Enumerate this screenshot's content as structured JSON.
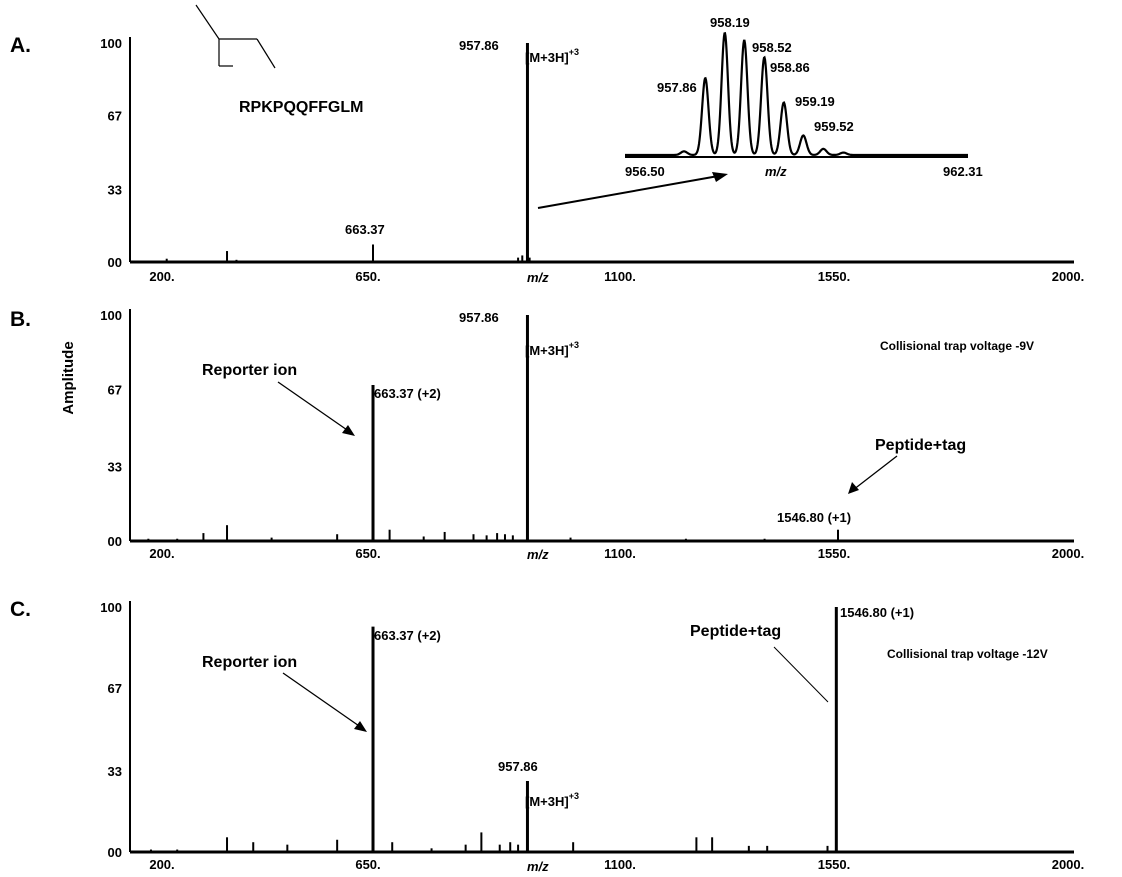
{
  "figure": {
    "y_axis_label": "Amplitude",
    "x_axis_label": "m/z"
  },
  "chart_data": [
    {
      "type": "bar",
      "panel": "A.",
      "xlim": [
        200,
        2000
      ],
      "ylim": [
        0,
        100
      ],
      "x_ticks": [
        "200.",
        "650.",
        "1100.",
        "1550.",
        "2000."
      ],
      "y_ticks": [
        "00",
        "33",
        "67",
        "100"
      ],
      "xlabel": "m/z",
      "peaks": [
        {
          "mz": 270,
          "rel": 1.5
        },
        {
          "mz": 385,
          "rel": 5
        },
        {
          "mz": 403,
          "rel": 1
        },
        {
          "mz": 663.37,
          "rel": 8
        },
        {
          "mz": 940,
          "rel": 2
        },
        {
          "mz": 948,
          "rel": 3
        },
        {
          "mz": 957.86,
          "rel": 100
        },
        {
          "mz": 962,
          "rel": 2
        }
      ],
      "annotations": [
        {
          "text": "663.37",
          "mz": 663.37
        },
        {
          "text": "957.86",
          "mz": 957.86
        },
        {
          "text": "[M+3H]",
          "sup": "+3"
        }
      ],
      "structure_label": "RPKPQQFFGLM",
      "inset": {
        "xlim": [
          956.5,
          962.31
        ],
        "x_ticks": [
          "956.50",
          "962.31"
        ],
        "xlabel": "m/z",
        "peaks": [
          {
            "mz": 957.86,
            "rel": 63,
            "label": "957.86"
          },
          {
            "mz": 958.19,
            "rel": 100,
            "label": "958.19"
          },
          {
            "mz": 958.52,
            "rel": 94,
            "label": "958.52"
          },
          {
            "mz": 958.86,
            "rel": 80,
            "label": "958.86"
          },
          {
            "mz": 959.19,
            "rel": 43,
            "label": "959.19"
          },
          {
            "mz": 959.52,
            "rel": 16,
            "label": "959.52"
          },
          {
            "mz": 957.5,
            "rel": 3
          },
          {
            "mz": 959.86,
            "rel": 5
          },
          {
            "mz": 960.2,
            "rel": 2
          }
        ]
      }
    },
    {
      "type": "bar",
      "panel": "B.",
      "xlim": [
        200,
        2000
      ],
      "ylim": [
        0,
        100
      ],
      "x_ticks": [
        "200.",
        "650.",
        "1100.",
        "1550.",
        "2000."
      ],
      "y_ticks": [
        "00",
        "33",
        "67",
        "100"
      ],
      "xlabel": "m/z",
      "condition": "Collisional trap voltage -9V",
      "peaks": [
        {
          "mz": 235,
          "rel": 1
        },
        {
          "mz": 290,
          "rel": 1
        },
        {
          "mz": 340,
          "rel": 3.5
        },
        {
          "mz": 385,
          "rel": 7
        },
        {
          "mz": 470,
          "rel": 1.5
        },
        {
          "mz": 595,
          "rel": 3
        },
        {
          "mz": 663.37,
          "rel": 69
        },
        {
          "mz": 695,
          "rel": 5
        },
        {
          "mz": 760,
          "rel": 2
        },
        {
          "mz": 800,
          "rel": 4
        },
        {
          "mz": 855,
          "rel": 3
        },
        {
          "mz": 880,
          "rel": 2.5
        },
        {
          "mz": 900,
          "rel": 3.5
        },
        {
          "mz": 915,
          "rel": 3
        },
        {
          "mz": 930,
          "rel": 2.5
        },
        {
          "mz": 957.86,
          "rel": 100
        },
        {
          "mz": 1040,
          "rel": 1.5
        },
        {
          "mz": 1550,
          "rel": 5
        },
        {
          "mz": 1260,
          "rel": 1
        },
        {
          "mz": 1410,
          "rel": 1
        }
      ],
      "annotations": [
        {
          "text": "957.86",
          "mz": 957.86
        },
        {
          "text": "[M+3H]",
          "sup": "+3"
        },
        {
          "text": "663.37 (+2)",
          "mz": 663.37
        },
        {
          "text": "1546.80 (+1)",
          "mz": 1546.8
        },
        {
          "text": "Reporter ion"
        },
        {
          "text": "Peptide+tag"
        }
      ]
    },
    {
      "type": "bar",
      "panel": "C.",
      "xlim": [
        200,
        2000
      ],
      "ylim": [
        0,
        100
      ],
      "x_ticks": [
        "200.",
        "650.",
        "1100.",
        "1550.",
        "2000."
      ],
      "y_ticks": [
        "00",
        "33",
        "67",
        "100"
      ],
      "xlabel": "m/z",
      "condition": "Collisional trap voltage -12V",
      "peaks": [
        {
          "mz": 240,
          "rel": 1
        },
        {
          "mz": 290,
          "rel": 1
        },
        {
          "mz": 385,
          "rel": 6
        },
        {
          "mz": 435,
          "rel": 4
        },
        {
          "mz": 500,
          "rel": 3
        },
        {
          "mz": 595,
          "rel": 5
        },
        {
          "mz": 663.37,
          "rel": 92
        },
        {
          "mz": 700,
          "rel": 4
        },
        {
          "mz": 775,
          "rel": 1.5
        },
        {
          "mz": 840,
          "rel": 3
        },
        {
          "mz": 870,
          "rel": 8
        },
        {
          "mz": 905,
          "rel": 3
        },
        {
          "mz": 925,
          "rel": 4
        },
        {
          "mz": 940,
          "rel": 3
        },
        {
          "mz": 957.86,
          "rel": 29
        },
        {
          "mz": 1045,
          "rel": 4
        },
        {
          "mz": 1280,
          "rel": 6
        },
        {
          "mz": 1310,
          "rel": 6
        },
        {
          "mz": 1380,
          "rel": 2.5
        },
        {
          "mz": 1415,
          "rel": 2.5
        },
        {
          "mz": 1530,
          "rel": 2.5
        },
        {
          "mz": 1546.8,
          "rel": 100
        }
      ],
      "annotations": [
        {
          "text": "663.37 (+2)",
          "mz": 663.37
        },
        {
          "text": "957.86",
          "mz": 957.86
        },
        {
          "text": "[M+3H]",
          "sup": "+3"
        },
        {
          "text": "1546.80 (+1)",
          "mz": 1546.8
        },
        {
          "text": "Reporter ion"
        },
        {
          "text": "Peptide+tag"
        }
      ]
    }
  ]
}
